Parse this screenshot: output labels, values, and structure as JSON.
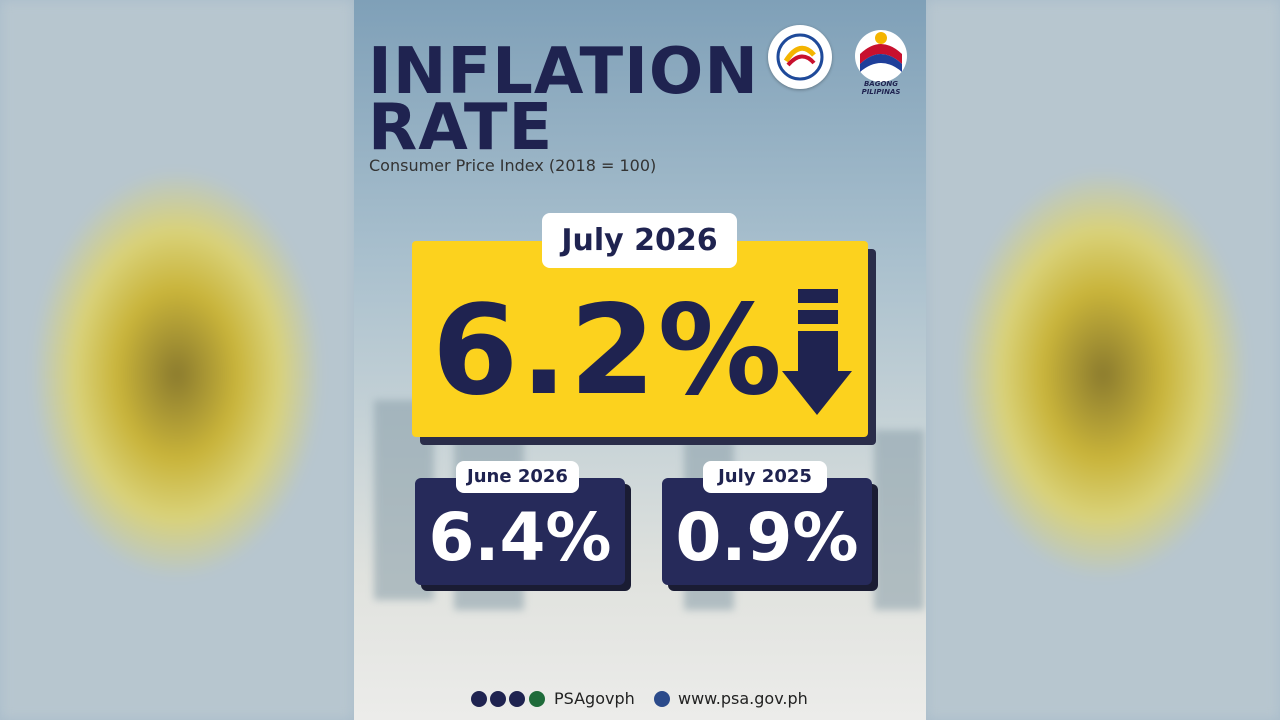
{
  "header": {
    "title_lines": [
      "INFLATION",
      "RATE"
    ],
    "subtitle": "Consumer Price Index (2018 = 100)",
    "logo_text": "BAGONG PILIPINAS"
  },
  "headline": {
    "period": "July 2026",
    "value": "6.2%"
  },
  "comparisons": [
    {
      "period": "June 2026",
      "value": "6.4%"
    },
    {
      "period": "July 2025",
      "value": "0.9%"
    }
  ],
  "footer": {
    "social": "PSAgovph",
    "website": "www.psa.gov.ph"
  }
}
